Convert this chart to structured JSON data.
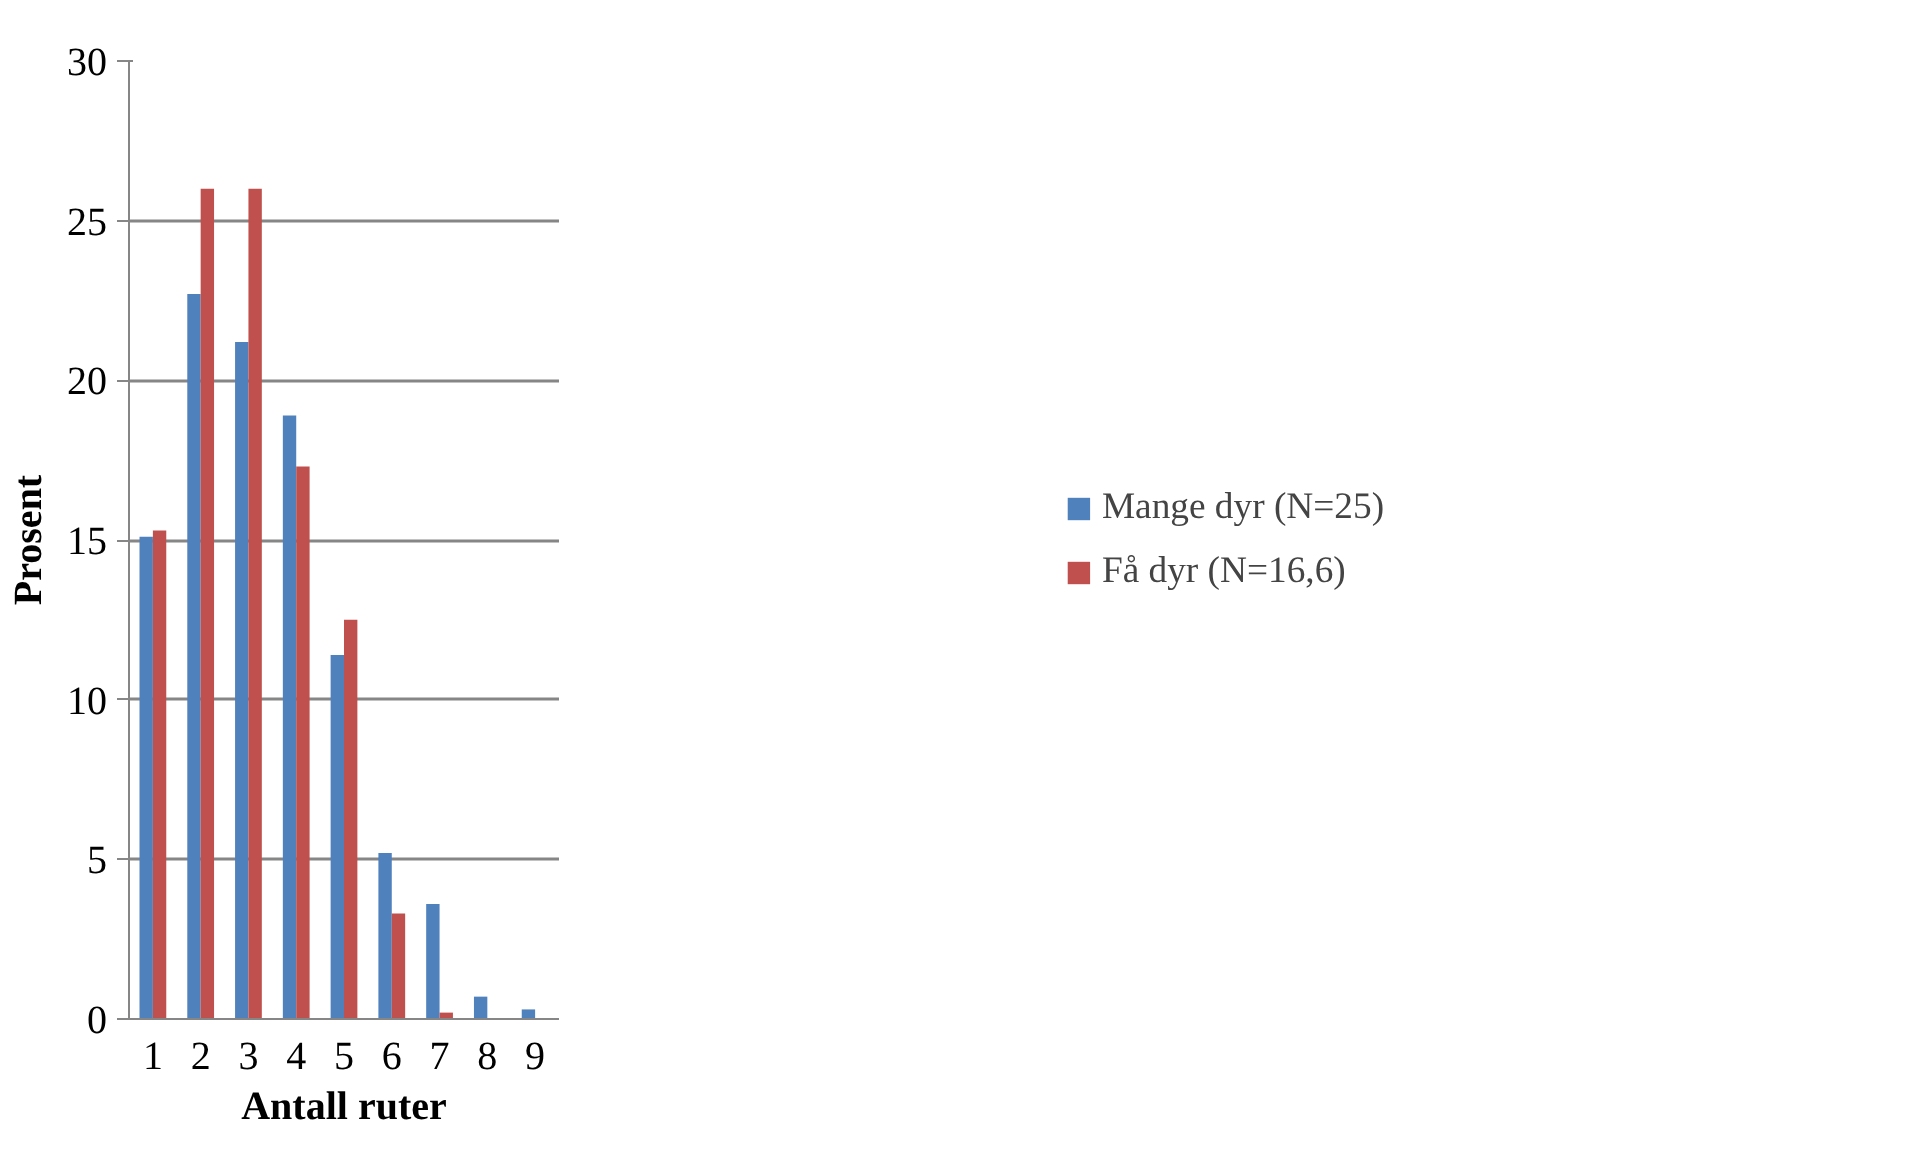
{
  "chart_data": {
    "type": "bar",
    "xlabel": "Antall ruter",
    "ylabel": "Prosent",
    "categories": [
      "1",
      "2",
      "3",
      "4",
      "5",
      "6",
      "7",
      "8",
      "9"
    ],
    "series": [
      {
        "name": "Mange dyr (N=25)",
        "color": "#4f81bd",
        "values": [
          15.1,
          22.7,
          21.2,
          18.9,
          11.4,
          5.2,
          3.6,
          0.7,
          0.3
        ]
      },
      {
        "name": "Få dyr (N=16,6)",
        "color": "#c0504d",
        "values": [
          15.3,
          26,
          26,
          17.3,
          12.5,
          3.3,
          0.2,
          0,
          0
        ]
      }
    ],
    "ylim": [
      0,
      30
    ],
    "yticks": [
      0,
      5,
      10,
      15,
      20,
      25,
      30
    ],
    "grid": "y",
    "legend": "right"
  }
}
